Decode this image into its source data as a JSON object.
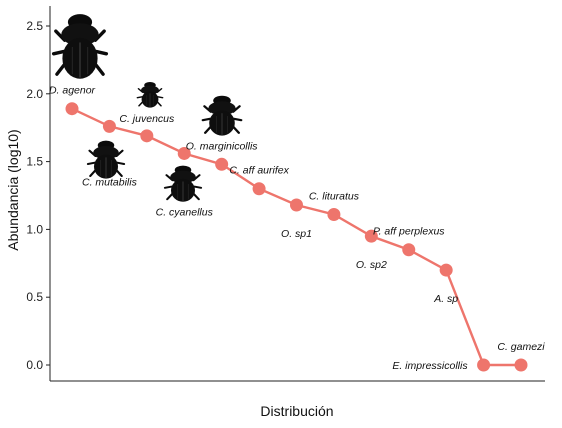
{
  "chart_data": {
    "type": "line",
    "xlabel": "Distribución",
    "ylabel": "Abundancia (log10)",
    "ylim": [
      0,
      2.6
    ],
    "yticks": [
      0.0,
      0.5,
      1.0,
      1.5,
      2.0,
      2.5
    ],
    "ytick_labels": [
      "0.0",
      "0.5",
      "1.0",
      "1.5",
      "2.0",
      "2.5"
    ],
    "grid": false,
    "line_color": "#ee756c",
    "marker_color": "#ee756c",
    "series": [
      {
        "points": [
          {
            "rank": 1,
            "species": "D. agenor",
            "value": 1.89,
            "label_pos": "above",
            "beetle_icon": true
          },
          {
            "rank": 2,
            "species": "C. mutabilis",
            "value": 1.76,
            "label_pos": "below",
            "beetle_icon": true
          },
          {
            "rank": 3,
            "species": "C. juvencus",
            "value": 1.69,
            "label_pos": "above",
            "beetle_icon": true
          },
          {
            "rank": 4,
            "species": "C. cyanellus",
            "value": 1.56,
            "label_pos": "below",
            "beetle_icon": true
          },
          {
            "rank": 5,
            "species": "O. marginicollis",
            "value": 1.48,
            "label_pos": "above",
            "beetle_icon": true
          },
          {
            "rank": 6,
            "species": "C. aff aurifex",
            "value": 1.3,
            "label_pos": "above",
            "beetle_icon": false
          },
          {
            "rank": 7,
            "species": "O. sp1",
            "value": 1.18,
            "label_pos": "below",
            "beetle_icon": false
          },
          {
            "rank": 8,
            "species": "C. lituratus",
            "value": 1.11,
            "label_pos": "above",
            "beetle_icon": false
          },
          {
            "rank": 9,
            "species": "O. sp2",
            "value": 0.95,
            "label_pos": "below",
            "beetle_icon": false
          },
          {
            "rank": 10,
            "species": "P. aff perplexus",
            "value": 0.85,
            "label_pos": "above",
            "beetle_icon": false
          },
          {
            "rank": 11,
            "species": "A. sp",
            "value": 0.7,
            "label_pos": "below",
            "beetle_icon": false
          },
          {
            "rank": 12,
            "species": "E. impressicollis",
            "value": 0.0,
            "label_pos": "above-left",
            "beetle_icon": false
          },
          {
            "rank": 13,
            "species": "C. gamezi",
            "value": 0.0,
            "label_pos": "above",
            "beetle_icon": false
          }
        ]
      }
    ]
  }
}
